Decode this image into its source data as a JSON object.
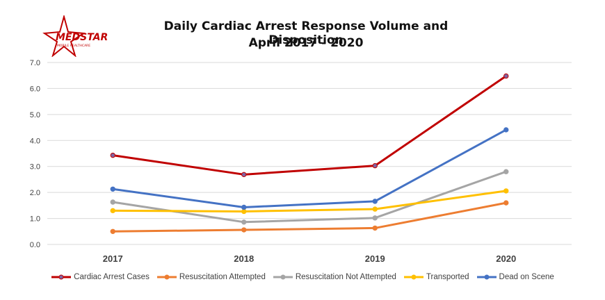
{
  "logo": {
    "text": "MEDSTAR",
    "subtext": "MOBILE HEALTHCARE"
  },
  "chart_data": {
    "type": "line",
    "title": [
      "Daily Cardiac Arrest Response Volume and Disposition",
      "April 2017 - 2020"
    ],
    "categories": [
      "2017",
      "2018",
      "2019",
      "2020"
    ],
    "y_ticks": [
      "0.0",
      "1.0",
      "2.0",
      "3.0",
      "4.0",
      "5.0",
      "6.0",
      "7.0"
    ],
    "ylim": [
      0,
      7
    ],
    "grid": true,
    "legend_position": "bottom",
    "series": [
      {
        "name": "Cardiac Arrest Cases",
        "values": [
          3.43,
          2.69,
          3.03,
          6.48
        ],
        "color": "#c00000",
        "marker_fill": "#8064a2"
      },
      {
        "name": "Resuscitation Attempted",
        "values": [
          0.5,
          0.56,
          0.63,
          1.6
        ],
        "color": "#ed7d31"
      },
      {
        "name": "Resuscitation Not Attempted",
        "values": [
          1.63,
          0.86,
          1.02,
          2.8
        ],
        "color": "#a5a5a5"
      },
      {
        "name": "Transported",
        "values": [
          1.3,
          1.27,
          1.36,
          2.06
        ],
        "color": "#ffc000"
      },
      {
        "name": "Dead on Scene",
        "values": [
          2.13,
          1.43,
          1.66,
          4.41
        ],
        "color": "#4472c4"
      }
    ]
  }
}
